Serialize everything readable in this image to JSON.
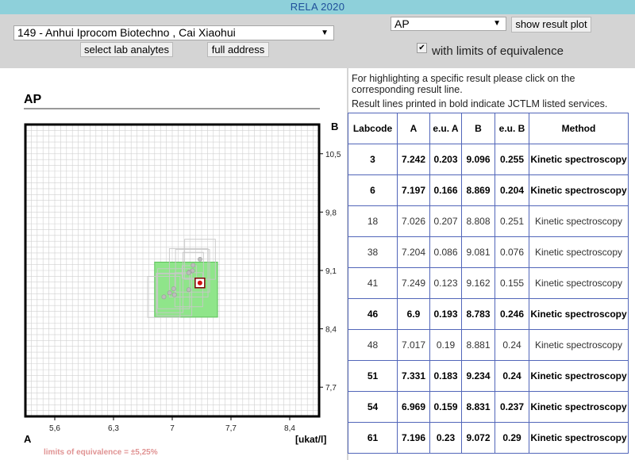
{
  "app": {
    "title": "RELA 2020"
  },
  "lab": {
    "selected": "149 - Anhui Iprocom Biotechno , Cai Xiaohui",
    "select_analytes_label": "select lab analytes",
    "full_address_label": "full address"
  },
  "analyte": {
    "selected": "AP",
    "show_plot_label": "show result plot",
    "limits_checkbox_label": "with limits of equivalence",
    "limits_checked": true
  },
  "info": {
    "line1": "For highlighting a specific result please click on the corresponding result line.",
    "line2": "Result lines printed in bold indicate JCTLM listed services."
  },
  "plot": {
    "title": "AP",
    "corner_b": "B",
    "corner_a": "A",
    "unit": "[ukat/l]",
    "equivalence_note": "limits of equivalence = ±5,25%"
  },
  "chart_data": {
    "type": "scatter",
    "title": "AP",
    "xlabel": "A",
    "ylabel": "B",
    "unit": "[ukat/l]",
    "xlim": [
      5.25,
      8.75
    ],
    "ylim": [
      7.35,
      10.85
    ],
    "x_ticks": [
      "5,6",
      "6,3",
      "7",
      "7,7",
      "8,4"
    ],
    "x_tick_values": [
      5.6,
      6.3,
      7.0,
      7.7,
      8.4
    ],
    "y_ticks": [
      "10,5",
      "9,8",
      "9,1",
      "8,4",
      "7,7"
    ],
    "y_tick_values": [
      10.5,
      9.8,
      9.1,
      8.4,
      7.7
    ],
    "equivalence_box": {
      "x": [
        6.79,
        7.54
      ],
      "y": [
        8.54,
        9.2
      ]
    },
    "highlight": {
      "x": 7.33,
      "y": 8.95
    },
    "points": [
      {
        "x": 7.242,
        "y": 9.096
      },
      {
        "x": 7.197,
        "y": 8.869
      },
      {
        "x": 7.026,
        "y": 8.808
      },
      {
        "x": 7.204,
        "y": 9.081
      },
      {
        "x": 7.249,
        "y": 9.162
      },
      {
        "x": 6.9,
        "y": 8.783
      },
      {
        "x": 7.017,
        "y": 8.881
      },
      {
        "x": 7.331,
        "y": 9.234
      },
      {
        "x": 6.969,
        "y": 8.831
      },
      {
        "x": 7.196,
        "y": 9.072
      }
    ]
  },
  "table": {
    "headers": {
      "labcode": "Labcode",
      "a": "A",
      "eua": "e.u. A",
      "b": "B",
      "eub": "e.u. B",
      "method": "Method"
    },
    "rows": [
      {
        "labcode": "3",
        "a": "7.242",
        "eua": "0.203",
        "b": "9.096",
        "eub": "0.255",
        "method": "Kinetic spectroscopy",
        "bold": true
      },
      {
        "labcode": "6",
        "a": "7.197",
        "eua": "0.166",
        "b": "8.869",
        "eub": "0.204",
        "method": "Kinetic spectroscopy",
        "bold": true
      },
      {
        "labcode": "18",
        "a": "7.026",
        "eua": "0.207",
        "b": "8.808",
        "eub": "0.251",
        "method": "Kinetic spectroscopy",
        "bold": false
      },
      {
        "labcode": "38",
        "a": "7.204",
        "eua": "0.086",
        "b": "9.081",
        "eub": "0.076",
        "method": "Kinetic spectroscopy",
        "bold": false
      },
      {
        "labcode": "41",
        "a": "7.249",
        "eua": "0.123",
        "b": "9.162",
        "eub": "0.155",
        "method": "Kinetic spectroscopy",
        "bold": false
      },
      {
        "labcode": "46",
        "a": "6.9",
        "eua": "0.193",
        "b": "8.783",
        "eub": "0.246",
        "method": "Kinetic spectroscopy",
        "bold": true
      },
      {
        "labcode": "48",
        "a": "7.017",
        "eua": "0.19",
        "b": "8.881",
        "eub": "0.24",
        "method": "Kinetic spectroscopy",
        "bold": false
      },
      {
        "labcode": "51",
        "a": "7.331",
        "eua": "0.183",
        "b": "9.234",
        "eub": "0.24",
        "method": "Kinetic spectroscopy",
        "bold": true
      },
      {
        "labcode": "54",
        "a": "6.969",
        "eua": "0.159",
        "b": "8.831",
        "eub": "0.237",
        "method": "Kinetic spectroscopy",
        "bold": true
      },
      {
        "labcode": "61",
        "a": "7.196",
        "eua": "0.23",
        "b": "9.072",
        "eub": "0.29",
        "method": "Kinetic spectroscopy",
        "bold": true
      }
    ]
  }
}
